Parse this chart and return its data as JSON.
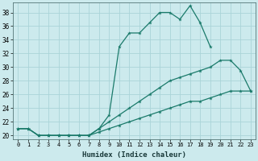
{
  "xlabel": "Humidex (Indice chaleur)",
  "bg_color": "#cceaed",
  "grid_color": "#aad4d8",
  "line_color": "#1a7a6a",
  "xlim": [
    -0.5,
    23.5
  ],
  "ylim": [
    19.5,
    39.5
  ],
  "yticks": [
    20,
    22,
    24,
    26,
    28,
    30,
    32,
    34,
    36,
    38
  ],
  "xticks": [
    0,
    1,
    2,
    3,
    4,
    5,
    6,
    7,
    8,
    9,
    10,
    11,
    12,
    13,
    14,
    15,
    16,
    17,
    18,
    19,
    20,
    21,
    22,
    23
  ],
  "line1_x": [
    0,
    1,
    2,
    3,
    4,
    5,
    6,
    7,
    8,
    9,
    10,
    11,
    12,
    13,
    14,
    15,
    16,
    17,
    18,
    19
  ],
  "line1_y": [
    21,
    21,
    20,
    20,
    20,
    20,
    20,
    20,
    21,
    23,
    33,
    35,
    35,
    36.5,
    38,
    38,
    37,
    39,
    36.5,
    33
  ],
  "line2_x": [
    0,
    1,
    2,
    3,
    4,
    5,
    6,
    7,
    8,
    9,
    10,
    11,
    12,
    13,
    14,
    15,
    16,
    17,
    18,
    19,
    20,
    21,
    22,
    23
  ],
  "line2_y": [
    21,
    21,
    20,
    20,
    20,
    20,
    20,
    20,
    21,
    22,
    23,
    24,
    25,
    26,
    27,
    28,
    28.5,
    29,
    29.5,
    30,
    31,
    31,
    29.5,
    26.5
  ],
  "line3_x": [
    0,
    1,
    2,
    3,
    4,
    5,
    6,
    7,
    8,
    9,
    10,
    11,
    12,
    13,
    14,
    15,
    16,
    17,
    18,
    19,
    20,
    21,
    22,
    23
  ],
  "line3_y": [
    21,
    21,
    20,
    20,
    20,
    20,
    20,
    20,
    20.5,
    21,
    21.5,
    22,
    22.5,
    23,
    23.5,
    24,
    24.5,
    25,
    25,
    25.5,
    26,
    26.5,
    26.5,
    26.5
  ]
}
